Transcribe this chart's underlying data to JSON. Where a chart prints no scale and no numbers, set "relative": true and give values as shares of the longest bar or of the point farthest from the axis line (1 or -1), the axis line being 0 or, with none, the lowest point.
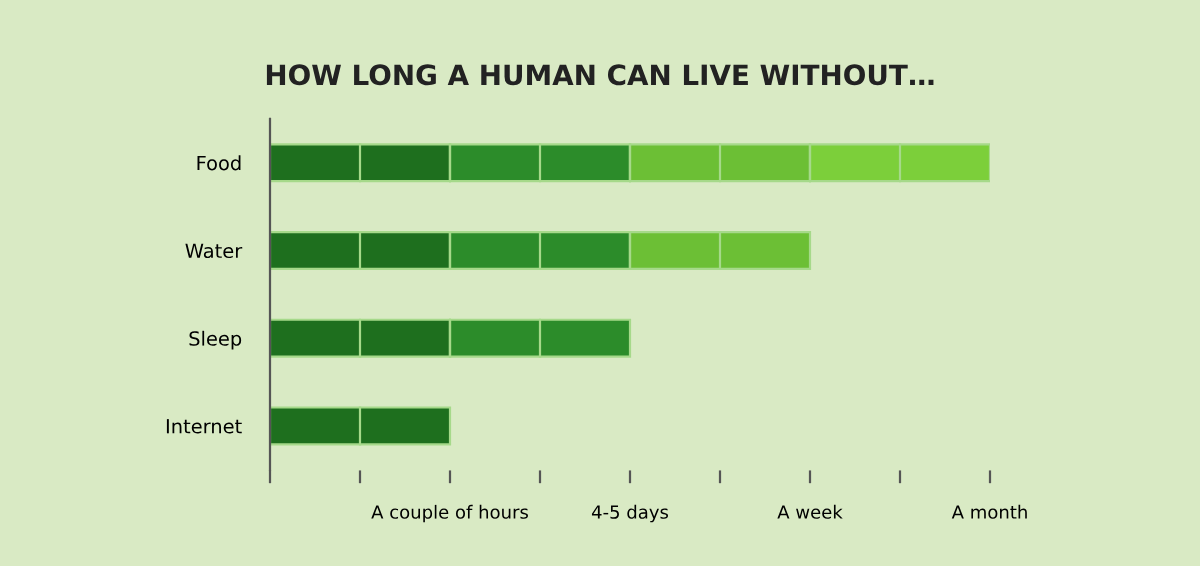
{
  "chart_data": {
    "type": "bar",
    "title": "HOW LONG A HUMAN CAN LIVE WITHOUT…",
    "orientation": "horizontal",
    "stacked": true,
    "relative": true,
    "categories": [
      "Food",
      "Water",
      "Sleep",
      "Internet"
    ],
    "series": [
      {
        "color": "#1e6f1e",
        "values": [
          0.25,
          0.25,
          0.25,
          0.25
        ]
      },
      {
        "color": "#2c8c2a",
        "values": [
          0.25,
          0.25,
          0.25,
          null
        ]
      },
      {
        "color": "#6cbf35",
        "values": [
          0.25,
          0.25,
          null,
          null
        ]
      },
      {
        "color": "#7ccf3a",
        "values": [
          0.25,
          null,
          null,
          null
        ]
      }
    ],
    "annotations": [
      "A couple of hours",
      "4-5 days",
      "A week",
      "A month"
    ],
    "grid": false,
    "legend": false
  }
}
